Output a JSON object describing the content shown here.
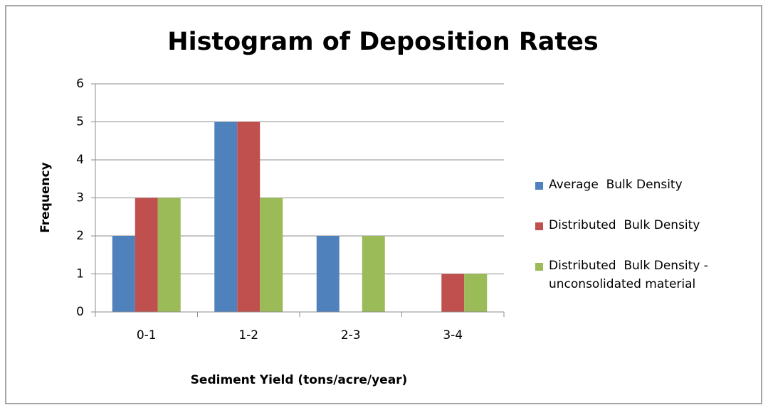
{
  "chart_data": {
    "type": "bar",
    "title": "Histogram of Deposition Rates",
    "x_label": "Sediment Yield (tons/acre/year)",
    "y_label": "Frequency",
    "categories": [
      "0-1",
      "1-2",
      "2-3",
      "3-4"
    ],
    "series": [
      {
        "name": "Average  Bulk Density",
        "color": "#4f81bd",
        "values": [
          2,
          5,
          2,
          0
        ]
      },
      {
        "name": "Distributed  Bulk Density",
        "color": "#c0504d",
        "values": [
          3,
          5,
          0,
          1
        ]
      },
      {
        "name": "Distributed  Bulk Density - unconsolidated material",
        "color": "#9bbb59",
        "values": [
          3,
          3,
          2,
          1
        ]
      }
    ],
    "ylim": [
      0,
      6
    ],
    "yticks": [
      0,
      1,
      2,
      3,
      4,
      5,
      6
    ],
    "grid": true,
    "legend": "right"
  }
}
